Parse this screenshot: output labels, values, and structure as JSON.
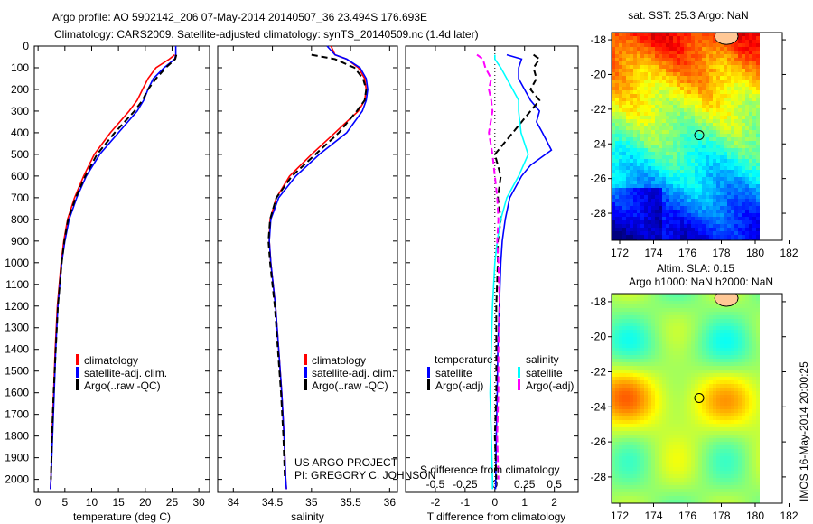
{
  "title": {
    "line1": "Argo profile: AO 5902142_206 07-May-2014 20140507_36 23.494S 176.693E",
    "line2": "Climatology: CARS2009. Satellite-adjusted climatology: synTS_20140509.nc (1.4d later)"
  },
  "colors": {
    "climatology": "#ff0000",
    "satellite": "#0000ff",
    "argo": "#000000",
    "sal_satellite": "#00ffff",
    "sal_argo": "#ff00ff"
  },
  "credit": {
    "line1": "US ARGO PROJECT",
    "line2": "PI: GREGORY C. JOHNSON"
  },
  "stamp": "IMOS 16-May-2014 20:00:25",
  "chart_data": [
    {
      "type": "line",
      "id": "temperature",
      "xlabel": "temperature (deg C)",
      "ylabel": "",
      "xlim": [
        -0.7,
        32
      ],
      "ylim": [
        0,
        2060
      ],
      "y_reversed": true,
      "xticks": [
        0,
        5,
        10,
        15,
        20,
        25,
        30
      ],
      "yticks": [
        0,
        100,
        200,
        300,
        400,
        500,
        600,
        700,
        800,
        900,
        1000,
        1100,
        1200,
        1300,
        1400,
        1500,
        1600,
        1700,
        1800,
        1900,
        2000
      ],
      "legend": [
        "climatology",
        "satellite-adj. clim.",
        "Argo(..raw -QC)"
      ],
      "series": [
        {
          "name": "climatology",
          "color": "#ff0000",
          "depth": [
            40,
            60,
            100,
            150,
            200,
            250,
            300,
            400,
            500,
            600,
            700,
            800,
            900,
            1000,
            1200,
            1400,
            1600,
            1800,
            2000,
            2045
          ],
          "values": [
            25.5,
            24.5,
            22,
            20.5,
            19.5,
            18.5,
            17,
            13.5,
            10.5,
            8.5,
            6.8,
            5.5,
            4.8,
            4.3,
            3.6,
            3.2,
            2.9,
            2.6,
            2.4,
            2.3
          ]
        },
        {
          "name": "satellite-adj. clim.",
          "color": "#0000ff",
          "depth": [
            0,
            40,
            60,
            100,
            150,
            200,
            250,
            300,
            400,
            500,
            600,
            700,
            800,
            900,
            1000,
            1200,
            1400,
            1600,
            1800,
            2000,
            2045
          ],
          "values": [
            25.7,
            25.7,
            25.5,
            23.5,
            21.5,
            20.5,
            19.7,
            18.5,
            15,
            11.5,
            9,
            7.2,
            5.8,
            5,
            4.4,
            3.7,
            3.3,
            3.0,
            2.7,
            2.4,
            2.3
          ]
        },
        {
          "name": "Argo(..raw -QC)",
          "color": "#000000",
          "dashed": true,
          "depth": [
            40,
            60,
            100,
            150,
            200,
            250,
            300,
            400,
            500,
            600,
            700,
            800,
            900,
            1000,
            1200,
            1400,
            1600,
            1800,
            2000
          ],
          "values": [
            25.8,
            25.6,
            23.8,
            22,
            20.5,
            19.5,
            18,
            14.3,
            11,
            8.8,
            7,
            5.6,
            4.9,
            4.4,
            3.7,
            3.3,
            2.9,
            2.6,
            2.4
          ]
        }
      ]
    },
    {
      "type": "line",
      "id": "salinity",
      "xlabel": "salinity",
      "xlim": [
        33.8,
        36.1
      ],
      "ylim": [
        0,
        2060
      ],
      "y_reversed": true,
      "xticks": [
        34,
        34.5,
        35,
        35.5,
        36
      ],
      "legend": [
        "climatology",
        "satellite-adj. clim.",
        "Argo(..raw -QC)"
      ],
      "series": [
        {
          "name": "climatology",
          "color": "#ff0000",
          "depth": [
            0,
            40,
            60,
            100,
            150,
            200,
            250,
            300,
            400,
            500,
            600,
            700,
            800,
            900,
            1000,
            1200,
            1400,
            1600,
            1800,
            2000,
            2045
          ],
          "values": [
            35.25,
            35.3,
            35.45,
            35.6,
            35.68,
            35.7,
            35.68,
            35.6,
            35.3,
            35.0,
            34.72,
            34.55,
            34.47,
            34.46,
            34.48,
            34.54,
            34.58,
            34.62,
            34.65,
            34.67,
            34.68
          ]
        },
        {
          "name": "satellite-adj. clim.",
          "color": "#0000ff",
          "depth": [
            0,
            40,
            60,
            100,
            150,
            200,
            250,
            300,
            400,
            500,
            600,
            700,
            800,
            900,
            1000,
            1200,
            1400,
            1600,
            1800,
            2000,
            2045
          ],
          "values": [
            35.2,
            35.3,
            35.45,
            35.62,
            35.7,
            35.72,
            35.7,
            35.65,
            35.45,
            35.1,
            34.8,
            34.58,
            34.48,
            34.46,
            34.48,
            34.54,
            34.58,
            34.62,
            34.65,
            34.67,
            34.68
          ]
        },
        {
          "name": "Argo(..raw -QC)",
          "color": "#000000",
          "dashed": true,
          "depth": [
            40,
            60,
            100,
            150,
            200,
            250,
            300,
            400,
            500,
            600,
            700,
            800,
            900,
            1000,
            1200,
            1400,
            1600,
            1800,
            2000
          ],
          "values": [
            35.0,
            35.3,
            35.55,
            35.66,
            35.7,
            35.68,
            35.58,
            35.35,
            35.05,
            34.75,
            34.55,
            34.47,
            34.45,
            34.47,
            34.53,
            34.57,
            34.61,
            34.64,
            34.66
          ]
        }
      ]
    },
    {
      "type": "line",
      "id": "differences",
      "xlabel": "T difference from climatology",
      "x2label": "S difference from climatology",
      "xlim": [
        -3,
        2.8
      ],
      "ylim": [
        0,
        2060
      ],
      "y_reversed": true,
      "xticks": [
        -2,
        -1,
        0,
        1,
        2
      ],
      "x2ticks": [
        -0.5,
        -0.25,
        0,
        0.25,
        0.5
      ],
      "x2ticklabels": [
        "-0.5",
        "-0.25",
        "0",
        "0.25",
        "0.5"
      ],
      "s_scale": 4,
      "legend_headers": [
        "temperature",
        "salinity"
      ],
      "legend": [
        "satellite",
        "Argo(-adj)",
        "satellite",
        "Argo(-adj)"
      ],
      "series": [
        {
          "name": "T satellite",
          "color": "#0000ff",
          "unit": "T",
          "depth": [
            40,
            60,
            100,
            150,
            200,
            250,
            300,
            350,
            400,
            480,
            550,
            600,
            700,
            800,
            900,
            1000,
            1200,
            1400,
            1600,
            1800,
            2000,
            2045
          ],
          "values": [
            0.4,
            0.9,
            0.8,
            0.8,
            1.0,
            1.2,
            1.5,
            1.4,
            1.6,
            1.9,
            1.2,
            0.9,
            0.5,
            0.35,
            0.25,
            0.2,
            0.15,
            0.1,
            0.08,
            0.05,
            0.03,
            0.02
          ]
        },
        {
          "name": "T Argo(-adj)",
          "color": "#000000",
          "unit": "T",
          "dashed": true,
          "depth": [
            40,
            60,
            100,
            150,
            200,
            250,
            300,
            400,
            500,
            600,
            700,
            800,
            900,
            1000,
            1200,
            1400,
            1600,
            1800,
            2000
          ],
          "values": [
            1.3,
            1.5,
            1.3,
            1.4,
            1.2,
            1.5,
            1.2,
            0.6,
            0.0,
            0.2,
            0.1,
            0.2,
            0.1,
            0.1,
            0.05,
            0.05,
            0.05,
            0.0,
            0.05
          ]
        },
        {
          "name": "S satellite",
          "color": "#00ffff",
          "unit": "S",
          "depth": [
            40,
            60,
            100,
            150,
            200,
            250,
            300,
            400,
            500,
            600,
            700,
            800,
            900,
            1000,
            1200,
            1400,
            1600,
            1800,
            2000,
            2045
          ],
          "values": [
            0.0,
            0.0,
            0.05,
            0.1,
            0.15,
            0.2,
            0.2,
            0.22,
            0.28,
            0.2,
            0.1,
            0.05,
            0.02,
            0.0,
            -0.02,
            -0.03,
            -0.04,
            -0.03,
            -0.02,
            -0.02
          ]
        },
        {
          "name": "S Argo(-adj)",
          "color": "#ff00ff",
          "unit": "S",
          "dashed": true,
          "depth": [
            40,
            60,
            100,
            150,
            200,
            250,
            300,
            400,
            500,
            600,
            700,
            800,
            900,
            1000,
            1200,
            1400,
            1600,
            1800,
            2000
          ],
          "values": [
            -0.15,
            -0.1,
            -0.08,
            -0.03,
            -0.05,
            -0.03,
            -0.02,
            -0.05,
            -0.02,
            0.0,
            0.02,
            0.03,
            0.02,
            0.03,
            0.04,
            0.03,
            0.03,
            0.02,
            0.03
          ]
        }
      ]
    },
    {
      "type": "heatmap",
      "id": "sst_map",
      "title": "sat. SST: 25.3 Argo: NaN",
      "xlim": [
        171.52,
        181.6
      ],
      "ylim": [
        -29.56,
        -17.58
      ],
      "xticks": [
        172,
        174,
        176,
        178,
        180,
        182
      ],
      "yticks": [
        -18,
        -20,
        -22,
        -24,
        -26,
        -28
      ],
      "data_east_limit": 180.2,
      "marker": {
        "lon": 176.693,
        "lat": -23.494
      }
    },
    {
      "type": "heatmap",
      "id": "sla_map",
      "title": "Altim. SLA: 0.15",
      "subtitle": "Argo h1000: NaN h2000: NaN",
      "xlim": [
        171.52,
        181.6
      ],
      "ylim": [
        -29.5,
        -17.54
      ],
      "xticks": [
        172,
        174,
        176,
        178,
        180,
        182
      ],
      "yticks": [
        -18,
        -20,
        -22,
        -24,
        -26,
        -28
      ],
      "data_east_limit": 180.2,
      "marker": {
        "lon": 176.693,
        "lat": -23.494
      }
    }
  ]
}
